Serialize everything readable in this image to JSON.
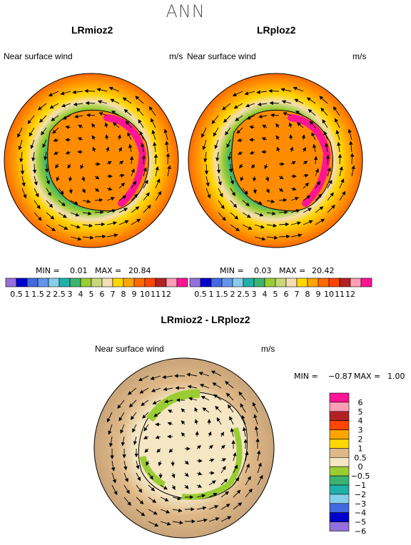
{
  "season": "ANN",
  "panels": [
    {
      "title": "LRmioz2",
      "variable": "Near surface wind",
      "units": "m/s",
      "min_label": "MIN =",
      "min": "0.01",
      "max_label": "MAX =",
      "max": "20.84"
    },
    {
      "title": "LRploz2",
      "variable": "Near surface wind",
      "units": "m/s",
      "min_label": "MIN =",
      "min": "0.03",
      "max_label": "MAX =",
      "max": "20.42"
    }
  ],
  "difference": {
    "title": "LRmioz2 - LRploz2",
    "variable": "Near surface wind",
    "units": "m/s",
    "min_label": "MIN =",
    "min": "−0.87",
    "max_label": "MAX =",
    "max": "1.00"
  },
  "colorbar_levels": [
    "0.5",
    "1",
    "1.5",
    "2",
    "2.5",
    "3",
    "4",
    "5",
    "6",
    "7",
    "8",
    "9",
    "10",
    "11",
    "12"
  ],
  "colorbar_colors": [
    "#9370db",
    "#0000cd",
    "#4169e1",
    "#6495ed",
    "#87ceeb",
    "#20b2aa",
    "#3cb371",
    "#9acd32",
    "#c8d77a",
    "#f5deb3",
    "#ffd700",
    "#ffa500",
    "#ff6a00",
    "#ff4500",
    "#b22222",
    "#ff9fb5",
    "#ff1493"
  ],
  "diff_colorbar_levels": [
    "6",
    "5",
    "4",
    "3",
    "2",
    "1",
    "0.5",
    "0",
    "−0.5",
    "−1",
    "−2",
    "−3",
    "−4",
    "−5",
    "−6"
  ],
  "diff_colorbar_colors": [
    "#ff1493",
    "#ff9fb5",
    "#b22222",
    "#ff4500",
    "#ffa500",
    "#ffd700",
    "#deb887",
    "#f5e6c4",
    "#9acd32",
    "#3cb371",
    "#20b2aa",
    "#87ceeb",
    "#4169e1",
    "#0000cd",
    "#9370db"
  ]
}
